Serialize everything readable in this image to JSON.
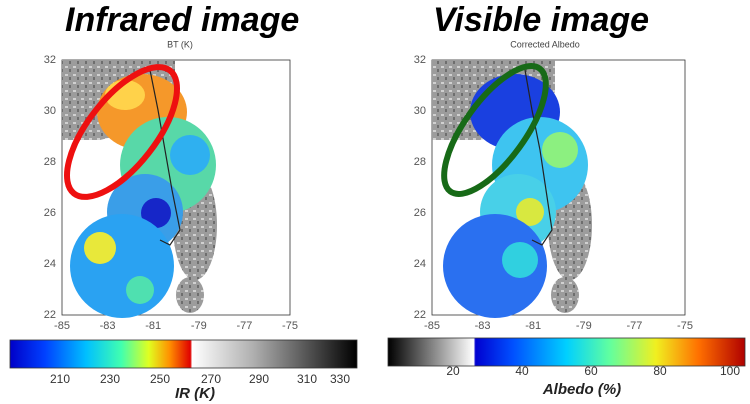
{
  "panels": [
    {
      "title": "Infrared image",
      "subtitle": "BT (K)",
      "yticks": [
        "32",
        "30",
        "28",
        "26",
        "24",
        "22"
      ],
      "xticks": [
        "-85",
        "-83",
        "-81",
        "-79",
        "-77",
        "-75"
      ],
      "colorbar": {
        "ticks": [
          "210",
          "230",
          "250",
          "270",
          "290",
          "310",
          "330"
        ],
        "label": "IR (K)"
      }
    },
    {
      "title": "Visible image",
      "subtitle": "Corrected Albedo",
      "yticks": [
        "32",
        "30",
        "28",
        "26",
        "24",
        "22"
      ],
      "xticks": [
        "-85",
        "-83",
        "-81",
        "-79",
        "-77",
        "-75"
      ],
      "colorbar": {
        "ticks": [
          "20",
          "40",
          "60",
          "80",
          "100"
        ],
        "label": "Albedo (%)"
      }
    }
  ]
}
